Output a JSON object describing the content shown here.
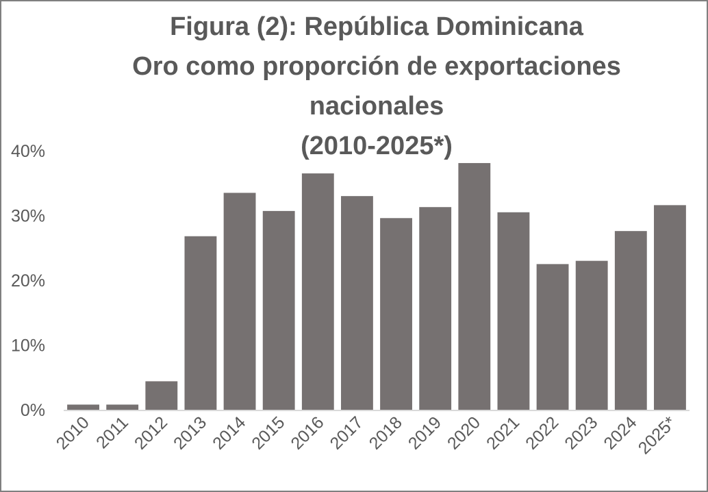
{
  "chart_data": {
    "type": "bar",
    "title_lines": [
      "Figura (2): República Dominicana",
      "Oro como proporción de exportaciones",
      "nacionales",
      "(2010-2025*)"
    ],
    "categories": [
      "2010",
      "2011",
      "2012",
      "2013",
      "2014",
      "2015",
      "2016",
      "2017",
      "2018",
      "2019",
      "2020",
      "2021",
      "2022",
      "2023",
      "2024",
      "2025*"
    ],
    "values": [
      0.8,
      0.8,
      4.4,
      26.8,
      33.5,
      30.7,
      36.5,
      33.0,
      29.6,
      31.3,
      38.1,
      30.5,
      22.5,
      23.0,
      27.6,
      31.6
    ],
    "yticks": [
      0,
      10,
      20,
      30,
      40
    ],
    "ytick_labels": [
      "0%",
      "10%",
      "20%",
      "30%",
      "40%"
    ],
    "ylim": [
      0,
      40
    ],
    "xlabel": "",
    "ylabel": "",
    "grid": false,
    "legend": "none",
    "bar_color": "#767171",
    "axis_color": "#d9d9d9",
    "text_color": "#595959"
  }
}
